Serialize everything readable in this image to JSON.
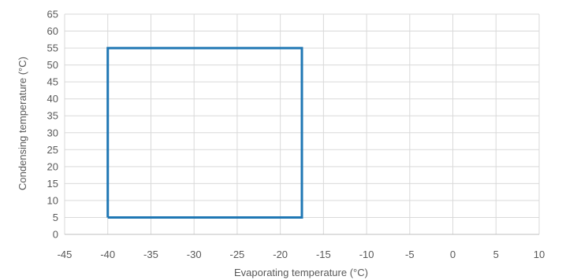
{
  "chart_data": {
    "type": "line",
    "title": "",
    "xlabel": "Evaporating temperature (°C)",
    "ylabel": "Condensing temperature (°C)",
    "xlim": [
      -45,
      10
    ],
    "ylim": [
      0,
      65
    ],
    "x_ticks": [
      -45,
      -40,
      -35,
      -30,
      -25,
      -20,
      -15,
      -10,
      -5,
      0,
      5,
      10
    ],
    "y_ticks": [
      0,
      5,
      10,
      15,
      20,
      25,
      30,
      35,
      40,
      45,
      50,
      55,
      60,
      65
    ],
    "grid": true,
    "series": [
      {
        "color": "#1f77b4",
        "x": [
          -40,
          -17.5,
          -17.5,
          -40,
          -40
        ],
        "y": [
          5,
          5,
          55,
          55,
          5
        ]
      }
    ]
  }
}
